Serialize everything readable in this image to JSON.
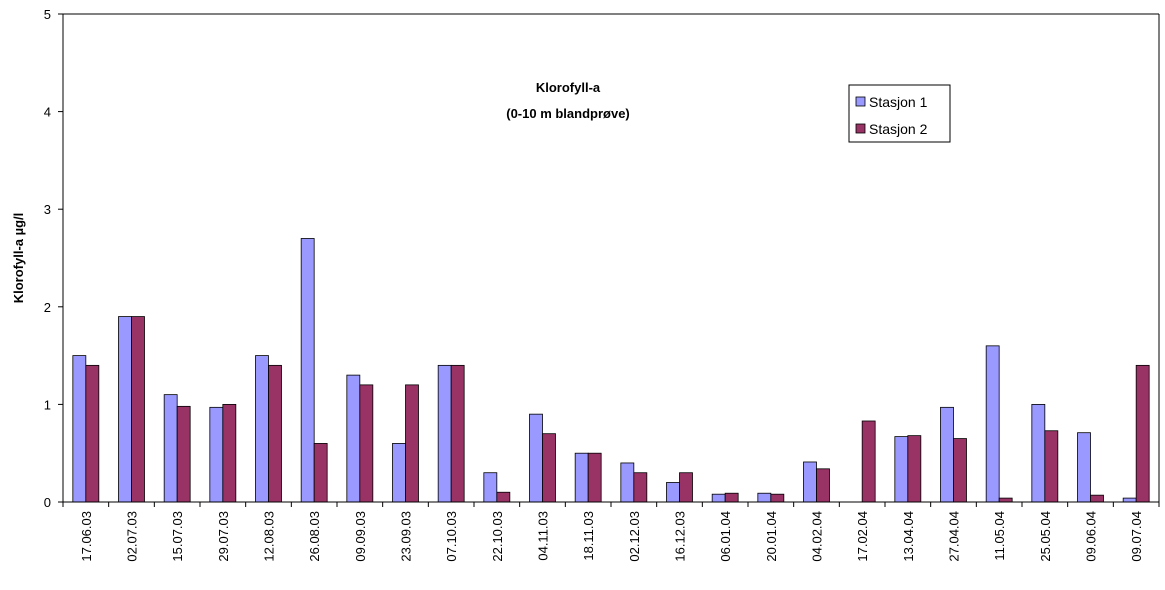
{
  "chart_data": {
    "type": "bar",
    "title": "Klorofyll-a",
    "subtitle": "(0-10 m blandprøve)",
    "xlabel": "",
    "ylabel": "Klorofyll-a µg/l",
    "ylim": [
      0,
      5
    ],
    "yticks": [
      0,
      1,
      2,
      3,
      4,
      5
    ],
    "grid": false,
    "legend_position": "top-right",
    "categories": [
      "17.06.03",
      "02.07.03",
      "15.07.03",
      "29.07.03",
      "12.08.03",
      "26.08.03",
      "09.09.03",
      "23.09.03",
      "07.10.03",
      "22.10.03",
      "04.11.03",
      "18.11.03",
      "02.12.03",
      "16.12.03",
      "06.01.04",
      "20.01.04",
      "04.02.04",
      "17.02.04",
      "13.04.04",
      "27.04.04",
      "11.05.04",
      "25.05.04",
      "09.06.04",
      "09.07.04"
    ],
    "series": [
      {
        "name": "Stasjon 1",
        "color": "#9999ff",
        "values": [
          1.5,
          1.9,
          1.1,
          0.97,
          1.5,
          2.7,
          1.3,
          0.6,
          1.4,
          0.3,
          0.9,
          0.5,
          0.4,
          0.2,
          0.08,
          0.09,
          0.41,
          null,
          0.67,
          0.97,
          1.6,
          1.0,
          0.71,
          0.04
        ]
      },
      {
        "name": "Stasjon 2",
        "color": "#993366",
        "values": [
          1.4,
          1.9,
          0.98,
          1.0,
          1.4,
          0.6,
          1.2,
          1.2,
          1.4,
          0.1,
          0.7,
          0.5,
          0.3,
          0.3,
          0.09,
          0.08,
          0.34,
          0.83,
          0.68,
          0.65,
          0.04,
          0.73,
          0.07,
          1.4
        ]
      }
    ]
  }
}
